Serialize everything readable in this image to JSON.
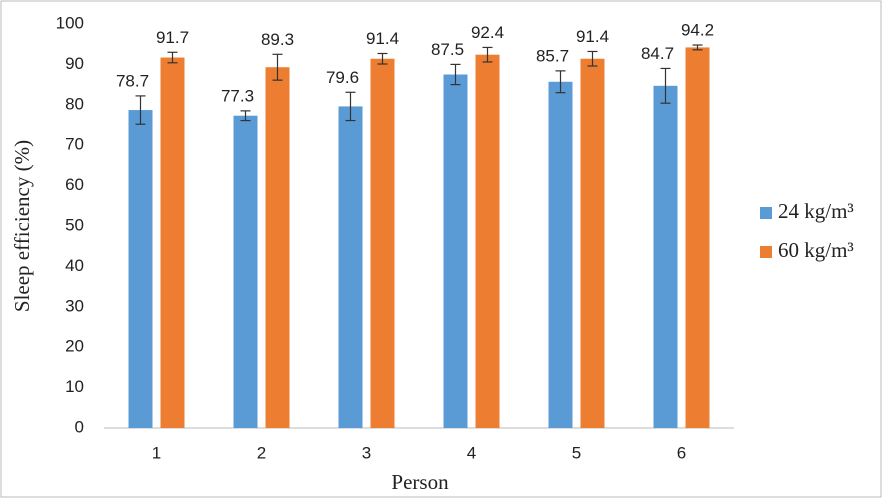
{
  "chart_data": {
    "type": "bar",
    "x_label": "Person",
    "y_label": "Sleep efficiency (%)",
    "categories": [
      "1",
      "2",
      "3",
      "4",
      "5",
      "6"
    ],
    "series": [
      {
        "name": "24 kg/m³",
        "color": "#5b9bd5",
        "values": [
          78.7,
          77.3,
          79.6,
          87.5,
          85.7,
          84.7
        ],
        "errors": [
          3.5,
          1.2,
          3.5,
          2.5,
          2.7,
          4.3
        ]
      },
      {
        "name": "60 kg/m³",
        "color": "#ed7d31",
        "values": [
          91.7,
          89.3,
          91.4,
          92.4,
          91.4,
          94.2
        ],
        "errors": [
          1.3,
          3.2,
          1.3,
          1.8,
          1.8,
          0.6
        ]
      }
    ],
    "ylim": [
      0,
      100
    ],
    "yticks": [
      0,
      10,
      20,
      30,
      40,
      50,
      60,
      70,
      80,
      90,
      100
    ],
    "grid": false,
    "legend": "right"
  }
}
